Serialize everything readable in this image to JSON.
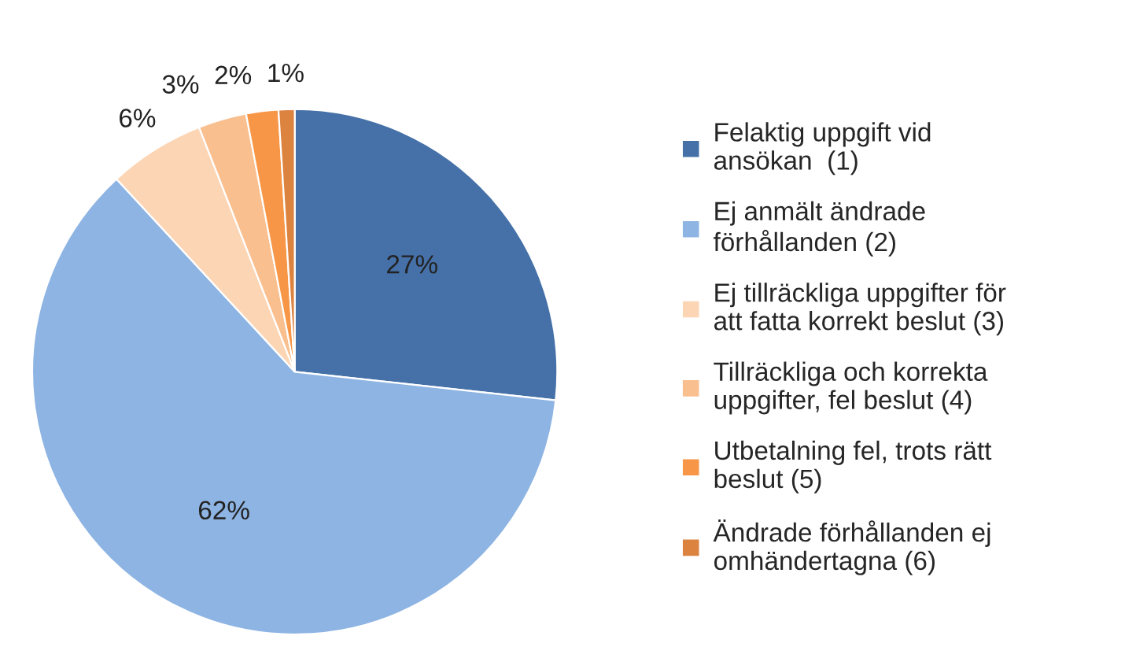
{
  "chart_data": {
    "type": "pie",
    "categories": [
      "Felaktig uppgift vid\nansökan  (1)",
      "Ej anmält ändrade\nförhållanden (2)",
      "Ej tillräckliga uppgifter för\natt fatta korrekt beslut (3)",
      "Tillräckliga och korrekta\nuppgifter, fel beslut (4)",
      "Utbetalning fel, trots rätt\nbeslut (5)",
      "Ändrade förhållanden ej\nomhändertagna (6)"
    ],
    "values": [
      27,
      62,
      6,
      3,
      2,
      1
    ],
    "value_labels": [
      "27%",
      "62%",
      "6%",
      "3%",
      "2%",
      "1%"
    ],
    "colors": [
      "#4571a8",
      "#8eb4e3",
      "#fcd5b5",
      "#f9bf8f",
      "#f79646",
      "#dd8340"
    ],
    "legend": "right"
  }
}
